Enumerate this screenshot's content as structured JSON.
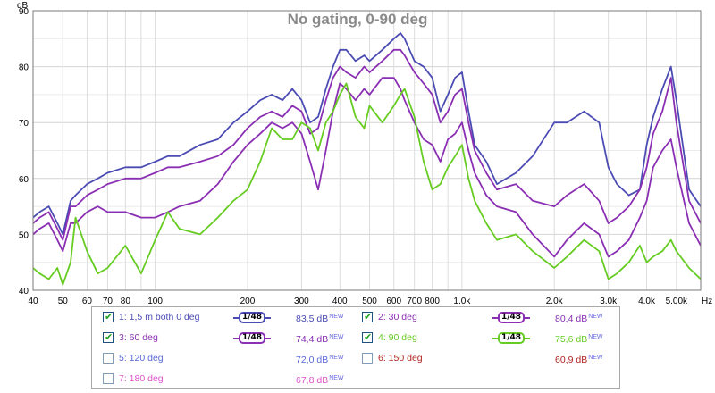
{
  "chart_data": {
    "type": "line",
    "title": "No gating, 0-90 deg",
    "ylabel": "dB",
    "xunit": "Hz",
    "xscale": "log",
    "xlim": [
      40,
      6000
    ],
    "ylim": [
      40,
      90
    ],
    "yticks": [
      40,
      50,
      60,
      70,
      80,
      90
    ],
    "xticks": [
      {
        "v": 40,
        "label": "40"
      },
      {
        "v": 50,
        "label": "50"
      },
      {
        "v": 60,
        "label": "60"
      },
      {
        "v": 70,
        "label": "70"
      },
      {
        "v": 80,
        "label": "80"
      },
      {
        "v": 100,
        "label": "100"
      },
      {
        "v": 200,
        "label": "200"
      },
      {
        "v": 300,
        "label": "300"
      },
      {
        "v": 400,
        "label": "400"
      },
      {
        "v": 500,
        "label": "500"
      },
      {
        "v": 600,
        "label": "600"
      },
      {
        "v": 700,
        "label": "700"
      },
      {
        "v": 800,
        "label": "800"
      },
      {
        "v": 1000,
        "label": "1,0k"
      },
      {
        "v": 2000,
        "label": "2,0k"
      },
      {
        "v": 3000,
        "label": "3,0k"
      },
      {
        "v": 4000,
        "label": "4,0k"
      },
      {
        "v": 5000,
        "label": "5,00k"
      }
    ],
    "grid": true,
    "series": [
      {
        "name": "1: 1,5 m both 0 deg",
        "color": "#4b4bb4",
        "x": [
          40,
          42,
          45,
          48,
          50,
          53,
          55,
          60,
          65,
          70,
          80,
          90,
          100,
          110,
          120,
          140,
          160,
          180,
          200,
          220,
          240,
          260,
          280,
          300,
          320,
          340,
          360,
          380,
          400,
          420,
          450,
          480,
          500,
          550,
          600,
          630,
          650,
          700,
          750,
          800,
          850,
          900,
          950,
          1000,
          1050,
          1100,
          1200,
          1300,
          1500,
          1700,
          2000,
          2200,
          2500,
          2800,
          3000,
          3200,
          3500,
          3800,
          4000,
          4200,
          4500,
          4800,
          5000,
          5500,
          6000
        ],
        "y": [
          53,
          54,
          55,
          52,
          50,
          56,
          57,
          59,
          60,
          61,
          62,
          62,
          63,
          64,
          64,
          66,
          67,
          70,
          72,
          74,
          75,
          74,
          76,
          74,
          70,
          71,
          76,
          80,
          83,
          83,
          81,
          82,
          81,
          83,
          85,
          86,
          85,
          81,
          80,
          78,
          72,
          75,
          78,
          79,
          72,
          66,
          63,
          59,
          61,
          64,
          70,
          70,
          72,
          70,
          62,
          59,
          57,
          58,
          66,
          71,
          76,
          80,
          74,
          58,
          55
        ]
      },
      {
        "name": "2: 30 deg",
        "color": "#8a2fb3",
        "x": [
          40,
          42,
          45,
          48,
          50,
          53,
          55,
          60,
          65,
          70,
          80,
          90,
          100,
          110,
          120,
          140,
          160,
          180,
          200,
          220,
          240,
          260,
          280,
          300,
          320,
          340,
          360,
          380,
          400,
          420,
          450,
          480,
          500,
          550,
          600,
          630,
          650,
          700,
          750,
          800,
          850,
          900,
          950,
          1000,
          1050,
          1100,
          1200,
          1300,
          1500,
          1700,
          2000,
          2200,
          2500,
          2800,
          3000,
          3200,
          3500,
          3800,
          4000,
          4200,
          4500,
          4800,
          5000,
          5500,
          6000
        ],
        "y": [
          52,
          53,
          54,
          51,
          49,
          55,
          55,
          57,
          58,
          59,
          60,
          60,
          61,
          62,
          62,
          63,
          64,
          66,
          69,
          71,
          72,
          71,
          73,
          72,
          68,
          69,
          74,
          78,
          80,
          79,
          78,
          80,
          79,
          81,
          83,
          83,
          82,
          79,
          77,
          75,
          70,
          72,
          75,
          76,
          70,
          65,
          61,
          58,
          59,
          56,
          55,
          57,
          59,
          56,
          52,
          53,
          55,
          58,
          62,
          68,
          72,
          78,
          70,
          56,
          52
        ]
      },
      {
        "name": "3: 60 deg",
        "color": "#8a2fb3",
        "x": [
          40,
          42,
          45,
          48,
          50,
          53,
          55,
          60,
          65,
          70,
          80,
          90,
          100,
          110,
          120,
          140,
          160,
          180,
          200,
          220,
          240,
          260,
          280,
          300,
          320,
          340,
          360,
          380,
          400,
          420,
          450,
          480,
          500,
          550,
          600,
          630,
          650,
          700,
          750,
          800,
          850,
          900,
          950,
          1000,
          1050,
          1100,
          1200,
          1300,
          1500,
          1700,
          2000,
          2200,
          2500,
          2800,
          3000,
          3200,
          3500,
          3800,
          4000,
          4200,
          4500,
          4800,
          5000,
          5500,
          6000
        ],
        "y": [
          50,
          51,
          52,
          49,
          47,
          52,
          52,
          54,
          55,
          54,
          54,
          53,
          53,
          54,
          55,
          56,
          59,
          63,
          66,
          68,
          70,
          69,
          70,
          68,
          63,
          58,
          65,
          72,
          77,
          76,
          74,
          76,
          75,
          78,
          78,
          76,
          74,
          70,
          67,
          66,
          63,
          67,
          68,
          70,
          65,
          61,
          57,
          55,
          54,
          50,
          46,
          49,
          52,
          50,
          46,
          47,
          49,
          53,
          56,
          62,
          65,
          67,
          62,
          52,
          48
        ]
      },
      {
        "name": "4: 90 deg",
        "color": "#66cc22",
        "x": [
          40,
          42,
          45,
          48,
          50,
          53,
          55,
          60,
          65,
          70,
          80,
          90,
          100,
          110,
          120,
          140,
          160,
          180,
          200,
          220,
          240,
          260,
          280,
          300,
          320,
          340,
          360,
          380,
          400,
          420,
          450,
          480,
          500,
          550,
          600,
          630,
          650,
          700,
          750,
          800,
          850,
          900,
          950,
          1000,
          1050,
          1100,
          1200,
          1300,
          1500,
          1700,
          2000,
          2200,
          2500,
          2800,
          3000,
          3200,
          3500,
          3800,
          4000,
          4200,
          4500,
          4800,
          5000,
          5500,
          6000
        ],
        "y": [
          44,
          43,
          42,
          44,
          41,
          45,
          53,
          47,
          43,
          44,
          48,
          43,
          49,
          54,
          51,
          50,
          53,
          56,
          58,
          63,
          69,
          67,
          67,
          70,
          69,
          65,
          70,
          72,
          75,
          77,
          71,
          69,
          73,
          70,
          73,
          75,
          76,
          71,
          63,
          58,
          59,
          62,
          64,
          66,
          60,
          56,
          52,
          49,
          50,
          47,
          44,
          46,
          49,
          47,
          42,
          43,
          45,
          48,
          45,
          46,
          47,
          49,
          47,
          44,
          42
        ]
      }
    ]
  },
  "legend": [
    {
      "label": "1: 1,5 m both 0 deg",
      "checked": true,
      "show_smoothing": true,
      "smoothing": "1/48",
      "level": "83,5 dB",
      "level_tag": "NEW",
      "color": "#4b4bb4"
    },
    {
      "label": "2: 30 deg",
      "checked": true,
      "show_smoothing": true,
      "smoothing": "1/48",
      "level": "80,4 dB",
      "level_tag": "NEW",
      "color": "#8a2fb3"
    },
    {
      "label": "3: 60 deg",
      "checked": true,
      "show_smoothing": true,
      "smoothing": "1/48",
      "level": "74,4 dB",
      "level_tag": "NEW",
      "color": "#8a2fb3"
    },
    {
      "label": "4: 90 deg",
      "checked": true,
      "show_smoothing": true,
      "smoothing": "1/48",
      "level": "75,6 dB",
      "level_tag": "NEW",
      "color": "#66cc22"
    },
    {
      "label": "5: 120 deg",
      "checked": false,
      "show_smoothing": false,
      "smoothing": "",
      "level": "72,0 dB",
      "level_tag": "NEW",
      "color": "#5a6ad8"
    },
    {
      "label": "6: 150 deg",
      "checked": false,
      "show_smoothing": false,
      "smoothing": "",
      "level": "60,9 dB",
      "level_tag": "NEW",
      "color": "#b22222"
    },
    {
      "label": "7: 180 deg",
      "checked": false,
      "show_smoothing": false,
      "smoothing": "",
      "level": "67,8 dB",
      "level_tag": "NEW",
      "color": "#dd55cc"
    }
  ]
}
